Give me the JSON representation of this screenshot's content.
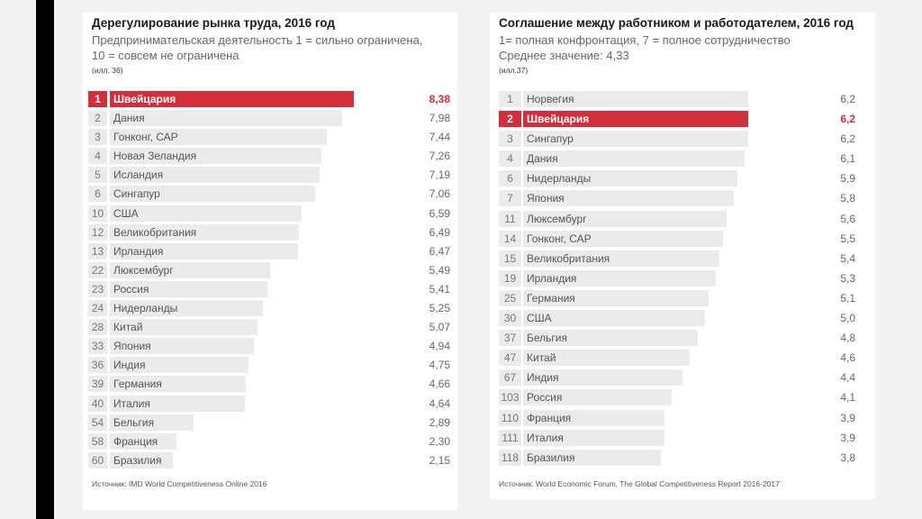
{
  "chart_data": [
    {
      "type": "bar",
      "orientation": "horizontal",
      "title": "Дерегулирование рынка труда, 2016 год",
      "subtitle_lines": [
        "Предпринимательская деятельность 1 = сильно ограничена,",
        "10 = совсем не ограничена"
      ],
      "figure_ref": "(илл. 36)",
      "highlight_color": "#d42e3a",
      "bar_color": "#ebebeb",
      "xlim": [
        0,
        8.38
      ],
      "rows": [
        {
          "rank": "1",
          "country": "Швейцария",
          "value": 8.38,
          "label": "8,38",
          "highlight": true
        },
        {
          "rank": "2",
          "country": "Дания",
          "value": 7.98,
          "label": "7,98"
        },
        {
          "rank": "3",
          "country": "Гонконг, САР",
          "value": 7.44,
          "label": "7,44"
        },
        {
          "rank": "4",
          "country": "Новая Зеландия",
          "value": 7.26,
          "label": "7,26"
        },
        {
          "rank": "5",
          "country": "Исландия",
          "value": 7.19,
          "label": "7,19"
        },
        {
          "rank": "6",
          "country": "Сингапур",
          "value": 7.06,
          "label": "7,06"
        },
        {
          "rank": "10",
          "country": "США",
          "value": 6.59,
          "label": "6,59"
        },
        {
          "rank": "12",
          "country": "Великобритания",
          "value": 6.49,
          "label": "6,49"
        },
        {
          "rank": "13",
          "country": "Ирландия",
          "value": 6.47,
          "label": "6,47"
        },
        {
          "rank": "22",
          "country": "Люксембург",
          "value": 5.49,
          "label": "5,49"
        },
        {
          "rank": "23",
          "country": "Россия",
          "value": 5.41,
          "label": "5,41"
        },
        {
          "rank": "24",
          "country": "Нидерланды",
          "value": 5.25,
          "label": "5,25"
        },
        {
          "rank": "28",
          "country": "Китай",
          "value": 5.07,
          "label": "5,07"
        },
        {
          "rank": "33",
          "country": "Япония",
          "value": 4.94,
          "label": "4,94"
        },
        {
          "rank": "36",
          "country": "Индия",
          "value": 4.75,
          "label": "4,75"
        },
        {
          "rank": "39",
          "country": "Германия",
          "value": 4.66,
          "label": "4,66"
        },
        {
          "rank": "40",
          "country": "Италия",
          "value": 4.64,
          "label": "4,64"
        },
        {
          "rank": "54",
          "country": "Бельгия",
          "value": 2.89,
          "label": "2,89"
        },
        {
          "rank": "58",
          "country": "Франция",
          "value": 2.3,
          "label": "2,30"
        },
        {
          "rank": "60",
          "country": "Бразилия",
          "value": 2.15,
          "label": "2,15"
        }
      ],
      "source": "Источник: IMD World Competitiveness Online 2016"
    },
    {
      "type": "bar",
      "orientation": "horizontal",
      "title": "Соглашение между работником и работодателем, 2016 год",
      "subtitle_lines": [
        "1= полная конфронтация, 7 = полное сотрудничество",
        "Среднее значение: 4,33"
      ],
      "figure_ref": "(илл.37)",
      "highlight_color": "#d42e3a",
      "bar_color": "#ebebeb",
      "xlim": [
        0,
        6.2
      ],
      "rows": [
        {
          "rank": "1",
          "country": "Норвегия",
          "value": 6.2,
          "label": "6,2"
        },
        {
          "rank": "2",
          "country": "Швейцария",
          "value": 6.2,
          "label": "6,2",
          "highlight": true
        },
        {
          "rank": "3",
          "country": "Сингапур",
          "value": 6.2,
          "label": "6,2"
        },
        {
          "rank": "4",
          "country": "Дания",
          "value": 6.1,
          "label": "6,1"
        },
        {
          "rank": "6",
          "country": "Нидерланды",
          "value": 5.9,
          "label": "5,9"
        },
        {
          "rank": "7",
          "country": "Япония",
          "value": 5.8,
          "label": "5,8"
        },
        {
          "rank": "11",
          "country": "Люксембург",
          "value": 5.6,
          "label": "5,6"
        },
        {
          "rank": "14",
          "country": "Гонконг, САР",
          "value": 5.5,
          "label": "5,5"
        },
        {
          "rank": "15",
          "country": "Великобритания",
          "value": 5.4,
          "label": "5,4"
        },
        {
          "rank": "19",
          "country": "Ирландия",
          "value": 5.3,
          "label": "5,3"
        },
        {
          "rank": "25",
          "country": "Германия",
          "value": 5.1,
          "label": "5,1"
        },
        {
          "rank": "30",
          "country": "США",
          "value": 5.0,
          "label": "5,0"
        },
        {
          "rank": "37",
          "country": "Бельгия",
          "value": 4.8,
          "label": "4,8"
        },
        {
          "rank": "47",
          "country": "Китай",
          "value": 4.6,
          "label": "4,6"
        },
        {
          "rank": "67",
          "country": "Индия",
          "value": 4.4,
          "label": "4,4"
        },
        {
          "rank": "103",
          "country": "Россия",
          "value": 4.1,
          "label": "4,1"
        },
        {
          "rank": "110",
          "country": "Франция",
          "value": 3.9,
          "label": "3,9"
        },
        {
          "rank": "111",
          "country": "Италия",
          "value": 3.9,
          "label": "3,9"
        },
        {
          "rank": "118",
          "country": "Бразилия",
          "value": 3.8,
          "label": "3,8"
        }
      ],
      "source": "Источник: World Economic Forum, The Global Competitiveness Report 2016-2017"
    }
  ]
}
